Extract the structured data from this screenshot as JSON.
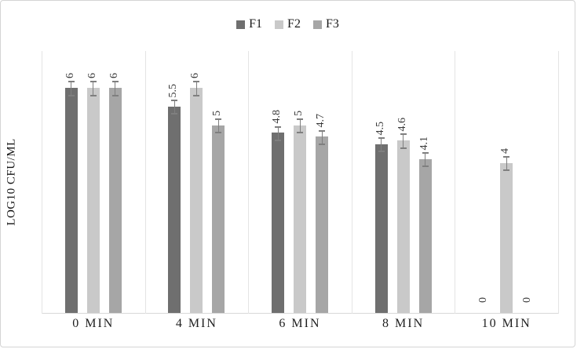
{
  "chart_data": {
    "type": "bar",
    "title": "",
    "xlabel": "",
    "ylabel": "LOG10 CFU/ML",
    "categories": [
      "0 MIN",
      "4 MIN",
      "6 MIN",
      "8 MIN",
      "10 MIN"
    ],
    "series": [
      {
        "name": "F1",
        "color": "#6f6f6f",
        "values": [
          6,
          5.5,
          4.8,
          4.5,
          0
        ]
      },
      {
        "name": "F2",
        "color": "#c9c9c9",
        "values": [
          6,
          6,
          5,
          4.6,
          4
        ]
      },
      {
        "name": "F3",
        "color": "#a6a6a6",
        "values": [
          6,
          5,
          4.7,
          4.1,
          0
        ]
      }
    ],
    "data_labels": true,
    "error_bars": {
      "shown": true,
      "approx_value": 0.18
    },
    "ylim": [
      0,
      7
    ],
    "grid": "vertical-category-separators",
    "legend_position": "top-center",
    "colors": {
      "separator_line": "#e4e4e4",
      "baseline": "#d8d8d8",
      "error_bar": "#7f7f7f",
      "label_text": "#3a3a3a"
    }
  }
}
